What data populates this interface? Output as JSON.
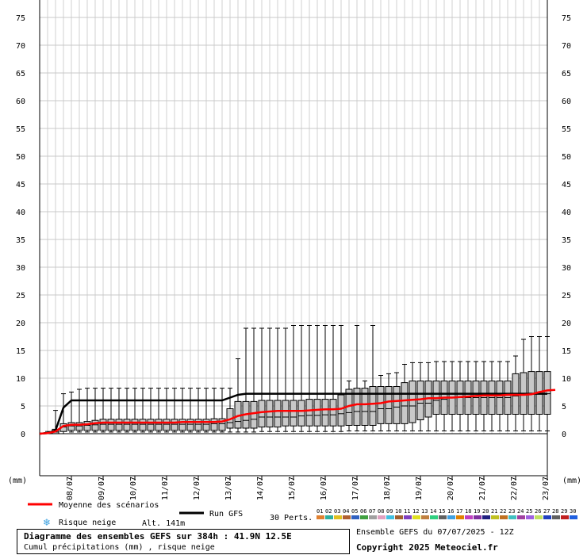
{
  "chart_data": {
    "type": "boxplot",
    "title": "Diagramme des ensembles GEFS sur 384h : 41.9N 12.5E",
    "subtitle": "Cumul précipitations (mm) , risque neige",
    "y_unit_label": "(mm)",
    "ylim": [
      0,
      75
    ],
    "y_ticks": [
      0,
      5,
      10,
      15,
      20,
      25,
      30,
      35,
      40,
      45,
      50,
      55,
      60,
      65,
      70,
      75
    ],
    "x_date_labels": [
      "08/07",
      "09/07",
      "10/07",
      "11/07",
      "12/07",
      "13/07",
      "14/07",
      "15/07",
      "16/07",
      "17/07",
      "18/07",
      "19/07",
      "20/07",
      "21/07",
      "22/07",
      "23/07"
    ],
    "grid": true,
    "steps_hours": [
      0,
      6,
      12,
      18,
      24,
      30,
      36,
      42,
      48,
      54,
      60,
      66,
      72,
      78,
      84,
      90,
      96,
      102,
      108,
      114,
      120,
      126,
      132,
      138,
      144,
      150,
      156,
      162,
      168,
      174,
      180,
      186,
      192,
      198,
      204,
      210,
      216,
      222,
      228,
      234,
      240,
      246,
      252,
      258,
      264,
      270,
      276,
      282,
      288,
      294,
      300,
      306,
      312,
      318,
      324,
      330,
      336,
      342,
      348,
      354,
      360,
      366,
      372,
      378,
      384
    ],
    "series": [
      {
        "name": "Moyenne des scénarios",
        "color": "#ff0000",
        "values": [
          0,
          0.1,
          0.4,
          1.4,
          1.6,
          1.6,
          1.7,
          1.9,
          2.0,
          2.0,
          2.0,
          2.0,
          2.0,
          2.0,
          2.0,
          2.0,
          2.0,
          2.0,
          2.1,
          2.1,
          2.1,
          2.1,
          2.1,
          2.2,
          2.6,
          3.2,
          3.5,
          3.7,
          3.9,
          4.0,
          4.1,
          4.1,
          4.1,
          4.1,
          4.2,
          4.3,
          4.4,
          4.4,
          4.5,
          5.0,
          5.3,
          5.3,
          5.4,
          5.5,
          5.8,
          5.9,
          6.0,
          6.1,
          6.2,
          6.4,
          6.4,
          6.5,
          6.5,
          6.6,
          6.7,
          6.8,
          6.9,
          6.9,
          6.9,
          7.0,
          7.0,
          7.0,
          7.1,
          7.5,
          7.8,
          7.9
        ]
      },
      {
        "name": "Run GFS",
        "color": "#000000",
        "values": [
          0,
          0.1,
          0.6,
          4.7,
          6.0,
          6.0,
          6.0,
          6.0,
          6.0,
          6.0,
          6.0,
          6.0,
          6.0,
          6.0,
          6.0,
          6.0,
          6.0,
          6.0,
          6.0,
          6.0,
          6.0,
          6.0,
          6.0,
          6.0,
          6.5,
          7.0,
          7.2,
          7.2,
          7.2,
          7.2,
          7.2,
          7.2,
          7.2,
          7.2,
          7.2,
          7.2,
          7.2,
          7.2,
          7.2,
          7.2,
          7.2,
          7.2,
          7.2,
          7.2,
          7.2,
          7.2,
          7.2,
          7.2,
          7.2,
          7.2,
          7.2,
          7.2,
          7.2,
          7.2,
          7.2,
          7.2,
          7.2,
          7.2,
          7.2,
          7.2,
          7.2,
          7.2,
          7.2,
          7.2,
          7.2
        ]
      }
    ],
    "boxes": [
      {
        "min": 0,
        "q1": 0,
        "median": 0,
        "q3": 0,
        "max": 0
      },
      {
        "min": 0,
        "q1": 0,
        "median": 0.1,
        "q3": 0.2,
        "max": 0.4
      },
      {
        "min": 0,
        "q1": 0,
        "median": 0.3,
        "q3": 0.8,
        "max": 4.2
      },
      {
        "min": 0,
        "q1": 0.4,
        "median": 1.2,
        "q3": 1.8,
        "max": 7.2
      },
      {
        "min": 0.3,
        "q1": 0.6,
        "median": 1.4,
        "q3": 2.0,
        "max": 7.5
      },
      {
        "min": 0.3,
        "q1": 0.6,
        "median": 1.4,
        "q3": 2.0,
        "max": 8.0
      },
      {
        "min": 0.3,
        "q1": 0.6,
        "median": 1.5,
        "q3": 2.2,
        "max": 8.2
      },
      {
        "min": 0.3,
        "q1": 0.6,
        "median": 1.6,
        "q3": 2.4,
        "max": 8.2
      },
      {
        "min": 0.3,
        "q1": 0.6,
        "median": 1.7,
        "q3": 2.6,
        "max": 8.2
      },
      {
        "min": 0.3,
        "q1": 0.6,
        "median": 1.7,
        "q3": 2.6,
        "max": 8.2
      },
      {
        "min": 0.3,
        "q1": 0.6,
        "median": 1.7,
        "q3": 2.6,
        "max": 8.2
      },
      {
        "min": 0.3,
        "q1": 0.6,
        "median": 1.7,
        "q3": 2.6,
        "max": 8.2
      },
      {
        "min": 0.3,
        "q1": 0.6,
        "median": 1.7,
        "q3": 2.6,
        "max": 8.2
      },
      {
        "min": 0.3,
        "q1": 0.6,
        "median": 1.7,
        "q3": 2.6,
        "max": 8.2
      },
      {
        "min": 0.3,
        "q1": 0.6,
        "median": 1.7,
        "q3": 2.6,
        "max": 8.2
      },
      {
        "min": 0.3,
        "q1": 0.6,
        "median": 1.7,
        "q3": 2.6,
        "max": 8.2
      },
      {
        "min": 0.3,
        "q1": 0.6,
        "median": 1.7,
        "q3": 2.6,
        "max": 8.2
      },
      {
        "min": 0.3,
        "q1": 0.6,
        "median": 1.7,
        "q3": 2.6,
        "max": 8.2
      },
      {
        "min": 0.3,
        "q1": 0.6,
        "median": 1.7,
        "q3": 2.6,
        "max": 8.2
      },
      {
        "min": 0.3,
        "q1": 0.6,
        "median": 1.7,
        "q3": 2.6,
        "max": 8.2
      },
      {
        "min": 0.3,
        "q1": 0.6,
        "median": 1.7,
        "q3": 2.6,
        "max": 8.2
      },
      {
        "min": 0.3,
        "q1": 0.6,
        "median": 1.7,
        "q3": 2.6,
        "max": 8.2
      },
      {
        "min": 0.3,
        "q1": 0.6,
        "median": 1.8,
        "q3": 2.7,
        "max": 8.2
      },
      {
        "min": 0.3,
        "q1": 0.6,
        "median": 1.8,
        "q3": 2.7,
        "max": 8.2
      },
      {
        "min": 0.3,
        "q1": 1.0,
        "median": 2.0,
        "q3": 4.5,
        "max": 8.2
      },
      {
        "min": 0.3,
        "q1": 1.0,
        "median": 2.2,
        "q3": 5.8,
        "max": 13.5
      },
      {
        "min": 0.3,
        "q1": 1.0,
        "median": 2.4,
        "q3": 5.8,
        "max": 19.0
      },
      {
        "min": 0.3,
        "q1": 1.0,
        "median": 2.6,
        "q3": 5.8,
        "max": 19.0
      },
      {
        "min": 0.4,
        "q1": 1.2,
        "median": 3.0,
        "q3": 6.0,
        "max": 19.0
      },
      {
        "min": 0.4,
        "q1": 1.2,
        "median": 3.0,
        "q3": 6.0,
        "max": 19.0
      },
      {
        "min": 0.4,
        "q1": 1.2,
        "median": 3.0,
        "q3": 6.0,
        "max": 19.0
      },
      {
        "min": 0.4,
        "q1": 1.4,
        "median": 3.0,
        "q3": 6.0,
        "max": 19.0
      },
      {
        "min": 0.4,
        "q1": 1.4,
        "median": 3.0,
        "q3": 6.0,
        "max": 19.5
      },
      {
        "min": 0.4,
        "q1": 1.4,
        "median": 3.2,
        "q3": 6.0,
        "max": 19.5
      },
      {
        "min": 0.4,
        "q1": 1.4,
        "median": 3.3,
        "q3": 6.2,
        "max": 19.5
      },
      {
        "min": 0.4,
        "q1": 1.4,
        "median": 3.3,
        "q3": 6.2,
        "max": 19.5
      },
      {
        "min": 0.4,
        "q1": 1.4,
        "median": 3.4,
        "q3": 6.2,
        "max": 19.5
      },
      {
        "min": 0.4,
        "q1": 1.4,
        "median": 3.4,
        "q3": 6.2,
        "max": 19.5
      },
      {
        "min": 0.4,
        "q1": 1.4,
        "median": 3.6,
        "q3": 7.0,
        "max": 19.5
      },
      {
        "min": 0.5,
        "q1": 1.5,
        "median": 3.8,
        "q3": 8.0,
        "max": 19.5
      },
      {
        "min": 0.5,
        "q1": 1.5,
        "median": 4.0,
        "q3": 8.2,
        "max": 19.5
      },
      {
        "min": 0.5,
        "q1": 1.5,
        "median": 4.0,
        "q3": 8.2,
        "max": 19.5
      },
      {
        "min": 0.5,
        "q1": 1.5,
        "median": 4.0,
        "q3": 8.5,
        "max": 19.5
      },
      {
        "min": 0.5,
        "q1": 1.8,
        "median": 4.5,
        "q3": 8.5,
        "max": 19.5
      },
      {
        "min": 0.5,
        "q1": 1.8,
        "median": 4.5,
        "q3": 8.5,
        "max": 19.5
      },
      {
        "min": 0.5,
        "q1": 1.8,
        "median": 4.8,
        "q3": 8.5,
        "max": 19.5
      },
      {
        "min": 0.5,
        "q1": 1.8,
        "median": 5.0,
        "q3": 9.2,
        "max": 19.5
      },
      {
        "min": 0.5,
        "q1": 2.0,
        "median": 5.0,
        "q3": 9.5,
        "max": 19.5
      },
      {
        "min": 0.5,
        "q1": 2.5,
        "median": 5.5,
        "q3": 9.5,
        "max": 19.5
      },
      {
        "min": 0.5,
        "q1": 3.0,
        "median": 5.5,
        "q3": 9.5,
        "max": 19.5
      },
      {
        "min": 0.5,
        "q1": 3.5,
        "median": 6.0,
        "q3": 9.5,
        "max": 19.5
      },
      {
        "min": 0.5,
        "q1": 3.5,
        "median": 6.2,
        "q3": 9.5,
        "max": 19.5
      },
      {
        "min": 0.5,
        "q1": 3.5,
        "median": 6.5,
        "q3": 9.5,
        "max": 20.0
      },
      {
        "min": 0.5,
        "q1": 3.5,
        "median": 6.5,
        "q3": 9.5,
        "max": 20.0
      },
      {
        "min": 0.5,
        "q1": 3.5,
        "median": 6.5,
        "q3": 9.5,
        "max": 20.0
      },
      {
        "min": 0.5,
        "q1": 3.5,
        "median": 6.5,
        "q3": 9.5,
        "max": 20.0
      },
      {
        "min": 0.5,
        "q1": 3.5,
        "median": 6.5,
        "q3": 9.5,
        "max": 20.0
      },
      {
        "min": 0.5,
        "q1": 3.5,
        "median": 6.5,
        "q3": 9.5,
        "max": 20.0
      },
      {
        "min": 0.5,
        "q1": 3.5,
        "median": 6.5,
        "q3": 9.5,
        "max": 20.0
      },
      {
        "min": 0.5,
        "q1": 3.5,
        "median": 6.5,
        "q3": 9.5,
        "max": 20.0
      },
      {
        "min": 0.5,
        "q1": 3.5,
        "median": 6.8,
        "q3": 10.8,
        "max": 20.0
      },
      {
        "min": 0.5,
        "q1": 3.5,
        "median": 7.0,
        "q3": 11.0,
        "max": 20.0
      },
      {
        "min": 0.5,
        "q1": 3.5,
        "median": 7.2,
        "q3": 11.2,
        "max": 20.0
      },
      {
        "min": 0.5,
        "q1": 3.5,
        "median": 7.2,
        "q3": 11.2,
        "max": 20.0
      },
      {
        "min": 0.5,
        "q1": 3.5,
        "median": 7.2,
        "q3": 11.2,
        "max": 20.0
      }
    ],
    "whisker_top_overrides": {
      "39": 9.5,
      "41": 9.5,
      "43": 10.5,
      "44": 10.8,
      "45": 11.0,
      "46": 12.5,
      "47": 12.8,
      "48": 12.8,
      "49": 12.8,
      "50": 13.0,
      "51": 13.0,
      "52": 13.0,
      "53": 13.0,
      "54": 13.0,
      "55": 13.0,
      "56": 13.0,
      "57": 13.0,
      "58": 13.0,
      "59": 13.0,
      "60": 14.0,
      "61": 17.0,
      "62": 17.5,
      "63": 17.5,
      "64": 17.5
    }
  },
  "legend": {
    "mean_label": "Moyenne des scénarios",
    "run_label": "Run GFS",
    "snow_label": "Risque neige",
    "alt_label": "Alt. 141m",
    "perts_label": "30 Perts.",
    "snow_icon": "snowflake-icon",
    "member_numbers": [
      "01",
      "02",
      "03",
      "04",
      "05",
      "06",
      "07",
      "08",
      "09",
      "10",
      "11",
      "12",
      "13",
      "14",
      "15",
      "16",
      "17",
      "18",
      "19",
      "20",
      "21",
      "22",
      "23",
      "24",
      "25",
      "26",
      "27",
      "28",
      "29",
      "30"
    ],
    "member_colors": [
      "#e08030",
      "#30b0a0",
      "#e0c020",
      "#b06030",
      "#3060c0",
      "#40a040",
      "#a0a0a0",
      "#e0a0c0",
      "#40c0e0",
      "#a06030",
      "#8040c0",
      "#e0e020",
      "#c08040",
      "#30d080",
      "#606060",
      "#40a0e0",
      "#e08000",
      "#c040c0",
      "#8030a0",
      "#202080",
      "#c0c020",
      "#c07020",
      "#40c0c0",
      "#a040a0",
      "#a060e0",
      "#c0e060",
      "#2040c0",
      "#606060",
      "#c02020",
      "#2060e0"
    ]
  },
  "footer": {
    "title": "Diagramme des ensembles GEFS sur 384h : 41.9N 12.5E",
    "subtitle": "Cumul précipitations (mm) , risque neige",
    "ensemble": "Ensemble GEFS du 07/07/2025 - 12Z",
    "copyright": "Copyright 2025 Meteociel.fr"
  }
}
